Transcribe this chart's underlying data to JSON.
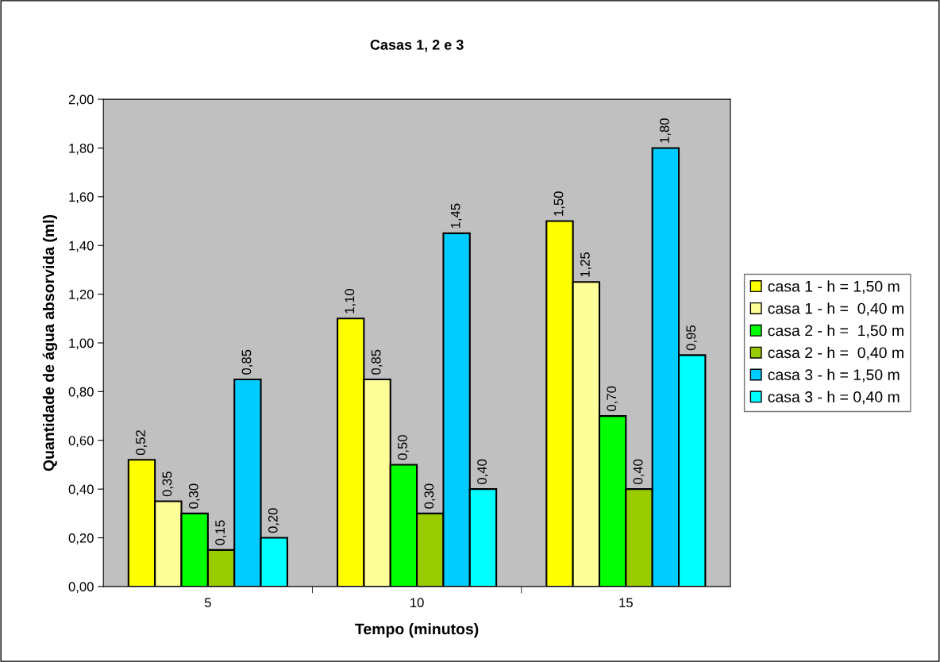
{
  "chart_data": {
    "type": "bar",
    "title": "Casas 1, 2 e 3",
    "xlabel": "Tempo (minutos)",
    "ylabel": "Quantidade de água absorvida (ml)",
    "categories": [
      "5",
      "10",
      "15"
    ],
    "series": [
      {
        "name": "casa 1 - h = 1,50 m",
        "color": "#ffff00",
        "values": [
          0.52,
          1.1,
          1.5
        ],
        "value_labels": [
          "0,52",
          "1,10",
          "1,50"
        ]
      },
      {
        "name": "casa 1 - h =  0,40 m",
        "color": "#ffff99",
        "values": [
          0.35,
          0.85,
          1.25
        ],
        "value_labels": [
          "0,35",
          "0,85",
          "1,25"
        ]
      },
      {
        "name": "casa 2 - h =  1,50 m",
        "color": "#00ff00",
        "values": [
          0.3,
          0.5,
          0.7
        ],
        "value_labels": [
          "0,30",
          "0,50",
          "0,70"
        ]
      },
      {
        "name": "casa 2 - h =  0,40 m",
        "color": "#99cc00",
        "values": [
          0.15,
          0.3,
          0.4
        ],
        "value_labels": [
          "0,15",
          "0,30",
          "0,40"
        ]
      },
      {
        "name": "casa 3 - h = 1,50 m",
        "color": "#00ccff",
        "values": [
          0.85,
          1.45,
          1.8
        ],
        "value_labels": [
          "0,85",
          "1,45",
          "1,80"
        ]
      },
      {
        "name": "casa 3 - h = 0,40 m",
        "color": "#00ffff",
        "values": [
          0.2,
          0.4,
          0.95
        ],
        "value_labels": [
          "0,20",
          "0,40",
          "0,95"
        ]
      }
    ],
    "ylim": [
      0,
      2
    ],
    "yticks": [
      {
        "value": 0,
        "label": "0,00"
      },
      {
        "value": 0.2,
        "label": "0,20"
      },
      {
        "value": 0.4,
        "label": "0,40"
      },
      {
        "value": 0.6,
        "label": "0,60"
      },
      {
        "value": 0.8,
        "label": "0,80"
      },
      {
        "value": 1.0,
        "label": "1,00"
      },
      {
        "value": 1.2,
        "label": "1,20"
      },
      {
        "value": 1.4,
        "label": "1,40"
      },
      {
        "value": 1.6,
        "label": "1,60"
      },
      {
        "value": 1.8,
        "label": "1,80"
      },
      {
        "value": 2.0,
        "label": "2,00"
      }
    ],
    "grid": false,
    "legend": "right"
  }
}
